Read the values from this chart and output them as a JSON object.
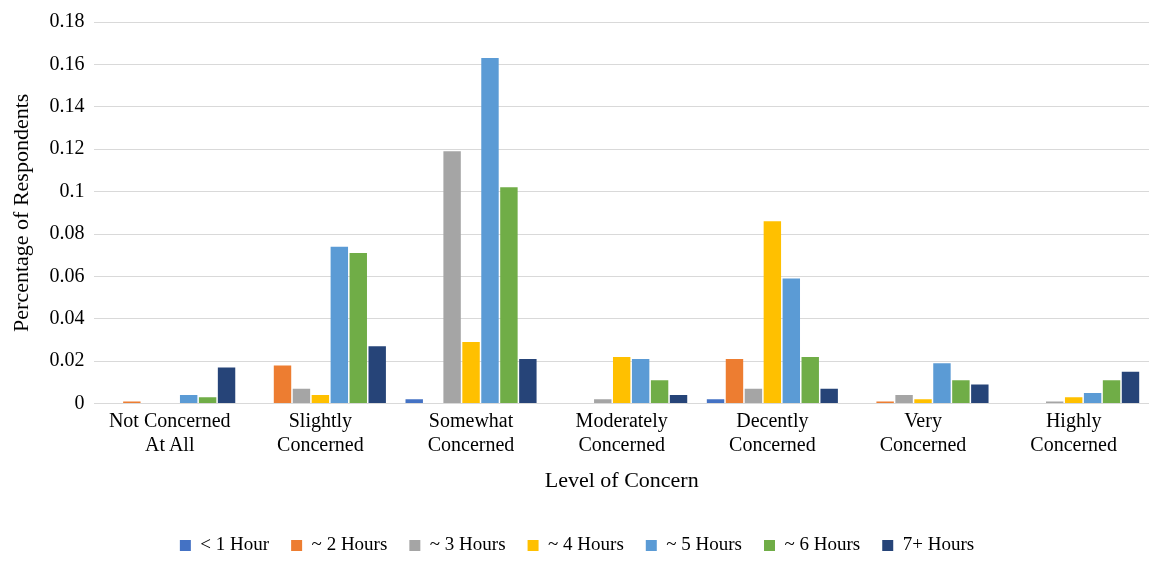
{
  "chart_data": {
    "type": "bar",
    "xlabel": "Level of Concern",
    "ylabel": "Percentage of Respondents",
    "categories": [
      "Not Concerned At All",
      "Slightly Concerned",
      "Somewhat Concerned",
      "Moderately Concerned",
      "Decently Concerned",
      "Very Concerned",
      "Highly Concerned"
    ],
    "series": [
      {
        "name": "< 1 Hour",
        "color": "#4472c4",
        "values": [
          0,
          0,
          0.002,
          0,
          0.002,
          0,
          0
        ]
      },
      {
        "name": "~ 2 Hours",
        "color": "#ed7d31",
        "values": [
          0.001,
          0.018,
          0,
          0,
          0.021,
          0.001,
          0
        ]
      },
      {
        "name": "~ 3 Hours",
        "color": "#a5a5a5",
        "values": [
          0,
          0.007,
          0.119,
          0.002,
          0.007,
          0.004,
          0.001
        ]
      },
      {
        "name": "~ 4 Hours",
        "color": "#ffc000",
        "values": [
          0,
          0.004,
          0.029,
          0.022,
          0.086,
          0.002,
          0.003
        ]
      },
      {
        "name": "~ 5 Hours",
        "color": "#5b9bd5",
        "values": [
          0.004,
          0.074,
          0.163,
          0.021,
          0.059,
          0.019,
          0.005
        ]
      },
      {
        "name": "~ 6 Hours",
        "color": "#70ad47",
        "values": [
          0.003,
          0.071,
          0.102,
          0.011,
          0.022,
          0.011,
          0.011
        ]
      },
      {
        "name": "7+ Hours",
        "color": "#264478",
        "values": [
          0.017,
          0.027,
          0.021,
          0.004,
          0.007,
          0.009,
          0.015
        ]
      }
    ],
    "ylim": [
      0,
      0.18
    ],
    "yticks": [
      0,
      0.02,
      0.04,
      0.06,
      0.08,
      0.1,
      0.12,
      0.14,
      0.16,
      0.18
    ],
    "grid": "y",
    "legend": "bottom"
  }
}
